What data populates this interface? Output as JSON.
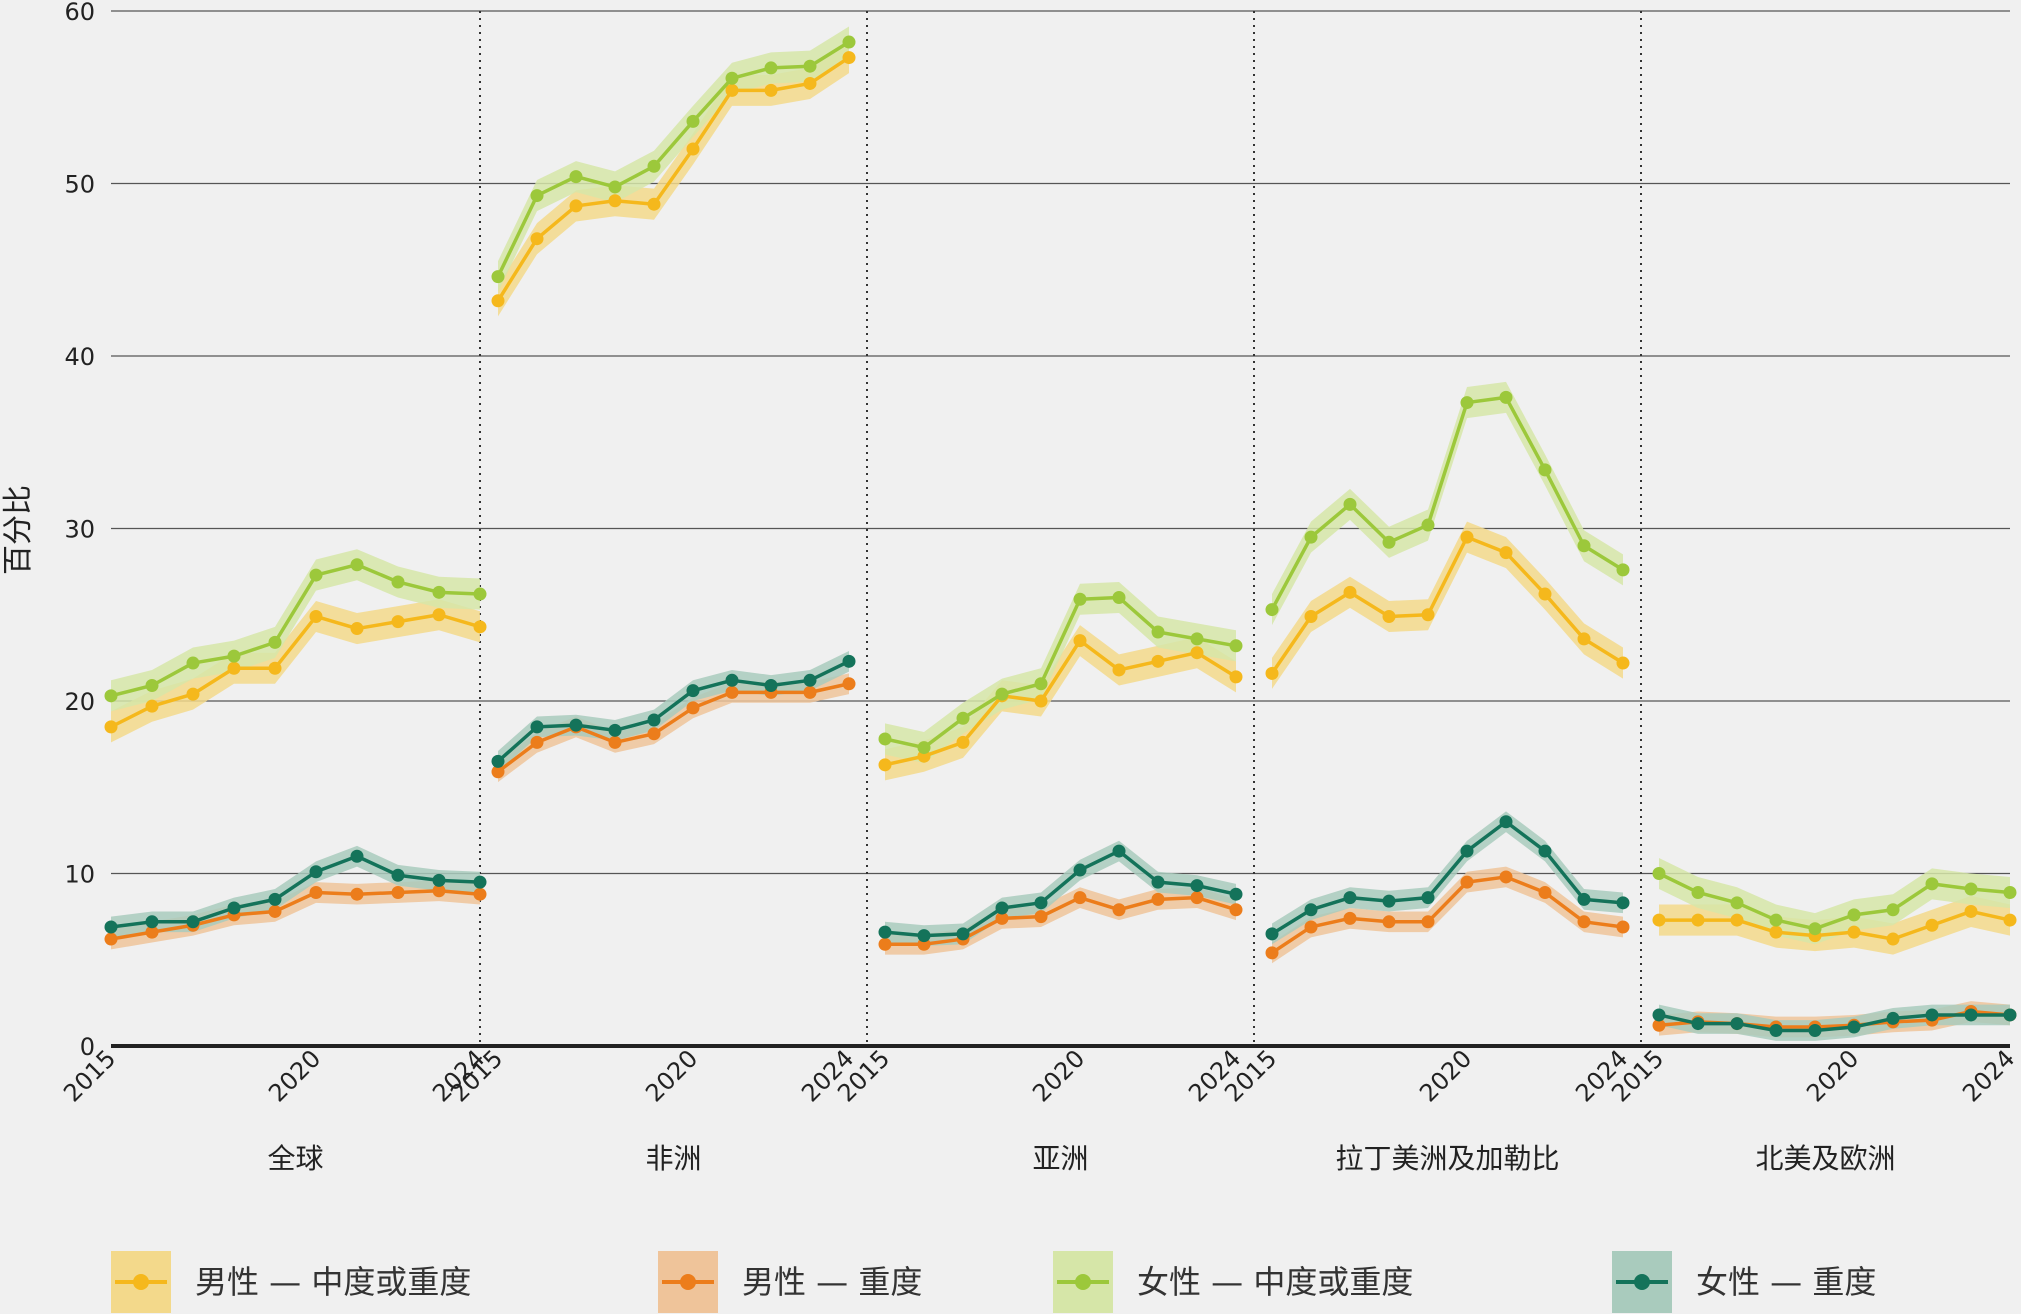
{
  "chart_data": {
    "type": "line",
    "ylabel": "百分比",
    "ylim": [
      0,
      60
    ],
    "yticks": [
      0,
      10,
      20,
      30,
      40,
      50,
      60
    ],
    "grid": true,
    "legend_position": "bottom",
    "years": [
      2015,
      2016,
      2017,
      2018,
      2019,
      2020,
      2021,
      2022,
      2023,
      2024
    ],
    "year_tick_labels": [
      "2015",
      "2020",
      "2024"
    ],
    "series_meta": [
      {
        "key": "male_mod",
        "name": "男性 — 中度或重度",
        "color": "#f5b81c",
        "band": "#f3d98b"
      },
      {
        "key": "male_sev",
        "name": "男性 — 重度",
        "color": "#ec7d1b",
        "band": "#efc49a"
      },
      {
        "key": "female_mod",
        "name": "女性 — 中度或重度",
        "color": "#9cc83b",
        "band": "#d6e6a8"
      },
      {
        "key": "female_sev",
        "name": "女性 — 重度",
        "color": "#14735a",
        "band": "#a9cbbd"
      }
    ],
    "panels": [
      {
        "label": "全球",
        "series": {
          "male_mod": [
            18.5,
            19.7,
            20.4,
            21.9,
            21.9,
            24.9,
            24.2,
            24.6,
            25.0,
            24.3
          ],
          "male_sev": [
            6.2,
            6.6,
            7.0,
            7.6,
            7.8,
            8.9,
            8.8,
            8.9,
            9.0,
            8.8
          ],
          "female_mod": [
            20.3,
            20.9,
            22.2,
            22.6,
            23.4,
            27.3,
            27.9,
            26.9,
            26.3,
            26.2
          ],
          "female_sev": [
            6.9,
            7.2,
            7.2,
            8.0,
            8.5,
            10.1,
            11.0,
            9.9,
            9.6,
            9.5
          ]
        }
      },
      {
        "label": "非洲",
        "series": {
          "male_mod": [
            43.2,
            46.8,
            48.7,
            49.0,
            48.8,
            52.0,
            55.4,
            55.4,
            55.8,
            57.3
          ],
          "male_sev": [
            15.9,
            17.6,
            18.5,
            17.6,
            18.1,
            19.6,
            20.5,
            20.5,
            20.5,
            21.0
          ],
          "female_mod": [
            44.6,
            49.3,
            50.4,
            49.8,
            51.0,
            53.6,
            56.1,
            56.7,
            56.8,
            58.2
          ],
          "female_sev": [
            16.5,
            18.5,
            18.6,
            18.3,
            18.9,
            20.6,
            21.2,
            20.9,
            21.2,
            22.3
          ]
        }
      },
      {
        "label": "亚洲",
        "series": {
          "male_mod": [
            16.3,
            16.8,
            17.6,
            20.3,
            20.0,
            23.5,
            21.8,
            22.3,
            22.8,
            21.4
          ],
          "male_sev": [
            5.9,
            5.9,
            6.2,
            7.4,
            7.5,
            8.6,
            7.9,
            8.5,
            8.6,
            7.9
          ],
          "female_mod": [
            17.8,
            17.3,
            19.0,
            20.4,
            21.0,
            25.9,
            26.0,
            24.0,
            23.6,
            23.2
          ],
          "female_sev": [
            6.6,
            6.4,
            6.5,
            8.0,
            8.3,
            10.2,
            11.3,
            9.5,
            9.3,
            8.8
          ]
        }
      },
      {
        "label": "拉丁美洲及加勒比",
        "series": {
          "male_mod": [
            21.6,
            24.9,
            26.3,
            24.9,
            25.0,
            29.5,
            28.6,
            26.2,
            23.6,
            22.2
          ],
          "male_sev": [
            5.4,
            6.9,
            7.4,
            7.2,
            7.2,
            9.5,
            9.8,
            8.9,
            7.2,
            6.9
          ],
          "female_mod": [
            25.3,
            29.5,
            31.4,
            29.2,
            30.2,
            37.3,
            37.6,
            33.4,
            29.0,
            27.6
          ],
          "female_sev": [
            6.5,
            7.9,
            8.6,
            8.4,
            8.6,
            11.3,
            13.0,
            11.3,
            8.5,
            8.3
          ]
        }
      },
      {
        "label": "北美及欧洲",
        "series": {
          "male_mod": [
            7.3,
            7.3,
            7.3,
            6.6,
            6.4,
            6.6,
            6.2,
            7.0,
            7.8,
            7.3
          ],
          "male_sev": [
            1.2,
            1.4,
            1.3,
            1.1,
            1.1,
            1.2,
            1.4,
            1.5,
            2.0,
            1.8
          ],
          "female_mod": [
            10.0,
            8.9,
            8.3,
            7.3,
            6.8,
            7.6,
            7.9,
            9.4,
            9.1,
            8.9
          ],
          "female_sev": [
            1.8,
            1.3,
            1.3,
            0.9,
            0.9,
            1.1,
            1.6,
            1.8,
            1.8,
            1.8
          ]
        }
      }
    ]
  }
}
